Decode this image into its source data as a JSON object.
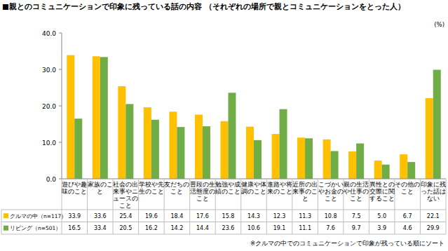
{
  "chart_data": {
    "type": "bar",
    "title": "■親とのコミュニケーションで印象に残っている話の内容 （それぞれの場所で親とコミュニケーションをとった人）",
    "ylabel": "(%)",
    "annotations": [
      "※クルマの中でのコミュニケーションで印象が残っている順にソート"
    ],
    "categories": [
      "遊びや趣味のこと",
      "家族のこと",
      "社会の出来事やニュースのこと",
      "学校や先生のこと",
      "友だちのこと",
      "普段の生活態度のこと",
      "勉強や成績のこと",
      "健康や体調のこと",
      "進路や将来のこと",
      "近所の出来事のこと",
      "こづかいやお金のこと",
      "親の生活や仕事のこと",
      "異性との交際に関すること",
      "その他のこと",
      "印象に残った話はない"
    ],
    "series": [
      {
        "name": "クルマの中（n=117）",
        "color": "#ffc000",
        "values": [
          33.9,
          33.6,
          25.4,
          19.6,
          18.4,
          17.6,
          15.8,
          14.3,
          12.3,
          11.3,
          10.8,
          7.5,
          5.0,
          6.7,
          22.1
        ],
        "value_labels": [
          "33.9",
          "33.6",
          "25.4",
          "19.6",
          "18.4",
          "17.6",
          "15.8",
          "14.3",
          "12.3",
          "11.3",
          "10.8",
          "7.5",
          "5.0",
          "6.7",
          "22.1"
        ]
      },
      {
        "name": "リビング（n=501）",
        "color": "#70ad47",
        "values": [
          16.5,
          33.4,
          20.5,
          16.2,
          14.2,
          14.4,
          23.6,
          10.6,
          19.1,
          11.1,
          7.6,
          9.7,
          3.9,
          4.6,
          29.9
        ],
        "value_labels": [
          "16.5",
          "33.4",
          "20.5",
          "16.2",
          "14.2",
          "14.4",
          "23.6",
          "10.6",
          "19.1",
          "11.1",
          "7.6",
          "9.7",
          "3.9",
          "4.6",
          "29.9"
        ]
      }
    ],
    "ylim": [
      0,
      40
    ],
    "yticks": [
      {
        "value": 0,
        "label": "0.0"
      },
      {
        "value": 10,
        "label": "10.0"
      },
      {
        "value": 20,
        "label": "20.0"
      },
      {
        "value": 30,
        "label": "30.0"
      },
      {
        "value": 40,
        "label": "40.0"
      }
    ],
    "grid": false,
    "legend": "bottom"
  }
}
